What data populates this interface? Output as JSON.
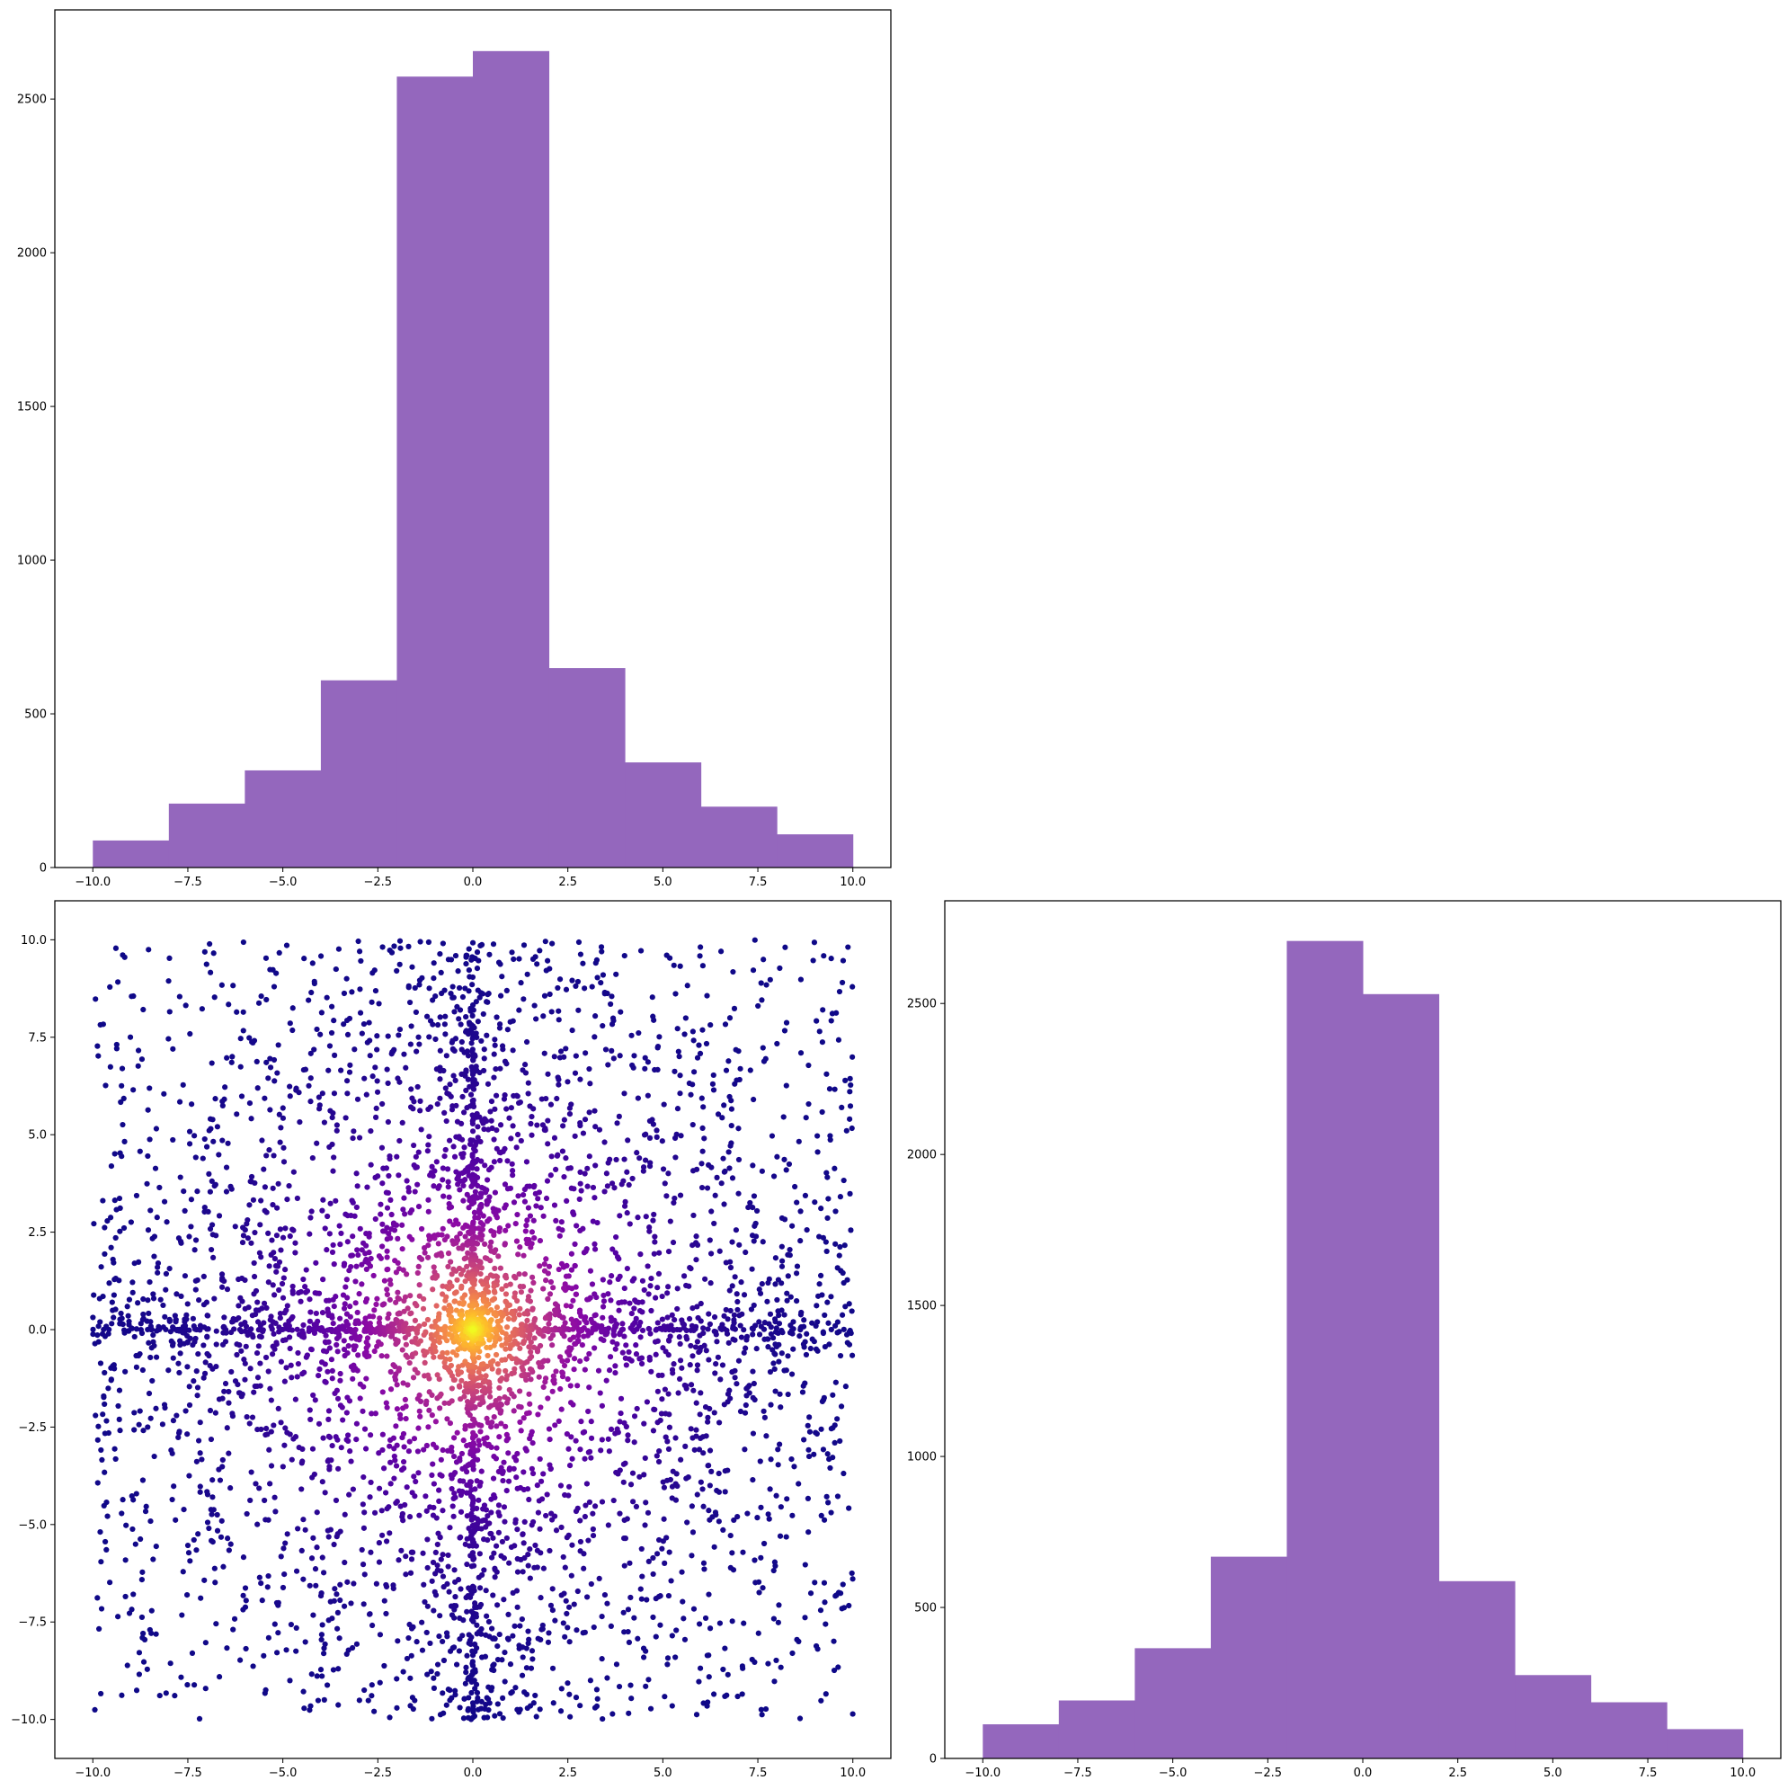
{
  "figure": {
    "background": "#ffffff",
    "bar_color": "#9467bd",
    "scatter_colormap": [
      "#0d0887",
      "#5302a3",
      "#8b0aa5",
      "#b83289",
      "#db5c68",
      "#f48849",
      "#febd2a",
      "#f0f921"
    ]
  },
  "chart_data": [
    {
      "id": "top-left-histogram",
      "type": "bar",
      "title": "",
      "xlabel": "",
      "ylabel": "",
      "bin_edges": [
        -10,
        -8,
        -6,
        -4,
        -2,
        0,
        2,
        4,
        6,
        8,
        10
      ],
      "values": [
        88,
        208,
        316,
        609,
        2573,
        2656,
        649,
        342,
        198,
        108
      ],
      "xlim": [
        -11,
        11
      ],
      "ylim": [
        0,
        2790
      ],
      "xticks": [
        -10,
        -7.5,
        -5,
        -2.5,
        0,
        2.5,
        5,
        7.5,
        10
      ],
      "xtick_labels": [
        "−10.0",
        "−7.5",
        "−5.0",
        "−2.5",
        "0.0",
        "2.5",
        "5.0",
        "7.5",
        "10.0"
      ],
      "yticks": [
        0,
        500,
        1000,
        1500,
        2000,
        2500
      ],
      "ytick_labels": [
        "0",
        "500",
        "1000",
        "1500",
        "2000",
        "2500"
      ],
      "grid": false,
      "legend": "none"
    },
    {
      "id": "bottom-left-scatter",
      "type": "scatter",
      "title": "",
      "xlabel": "",
      "ylabel": "",
      "n_points": 5000,
      "x_range": [
        -10,
        10
      ],
      "y_range": [
        -10,
        10
      ],
      "center": [
        0,
        0
      ],
      "color_by": "density (plasma colormap)",
      "xlim": [
        -11,
        11
      ],
      "ylim": [
        -11,
        11
      ],
      "xticks": [
        -10,
        -7.5,
        -5,
        -2.5,
        0,
        2.5,
        5,
        7.5,
        10
      ],
      "xtick_labels": [
        "−10.0",
        "−7.5",
        "−5.0",
        "−2.5",
        "0.0",
        "2.5",
        "5.0",
        "7.5",
        "10.0"
      ],
      "yticks": [
        -10,
        -7.5,
        -5,
        -2.5,
        0,
        2.5,
        5,
        7.5,
        10
      ],
      "ytick_labels": [
        "−10.0",
        "−7.5",
        "−5.0",
        "−2.5",
        "0.0",
        "2.5",
        "5.0",
        "7.5",
        "10.0"
      ],
      "grid": false,
      "legend": "none"
    },
    {
      "id": "bottom-right-histogram",
      "type": "bar",
      "title": "",
      "xlabel": "",
      "ylabel": "",
      "bin_edges": [
        -10,
        -8,
        -6,
        -4,
        -2,
        0,
        2,
        4,
        6,
        8,
        10
      ],
      "values": [
        113,
        192,
        365,
        668,
        2707,
        2531,
        587,
        276,
        186,
        97
      ],
      "xlim": [
        -11,
        11
      ],
      "ylim": [
        0,
        2840
      ],
      "xticks": [
        -10,
        -7.5,
        -5,
        -2.5,
        0,
        2.5,
        5,
        7.5,
        10
      ],
      "xtick_labels": [
        "−10.0",
        "−7.5",
        "−5.0",
        "−2.5",
        "0.0",
        "2.5",
        "5.0",
        "7.5",
        "10.0"
      ],
      "yticks": [
        0,
        500,
        1000,
        1500,
        2000,
        2500
      ],
      "ytick_labels": [
        "0",
        "500",
        "1000",
        "1500",
        "2000",
        "2500"
      ],
      "grid": false,
      "legend": "none"
    }
  ]
}
